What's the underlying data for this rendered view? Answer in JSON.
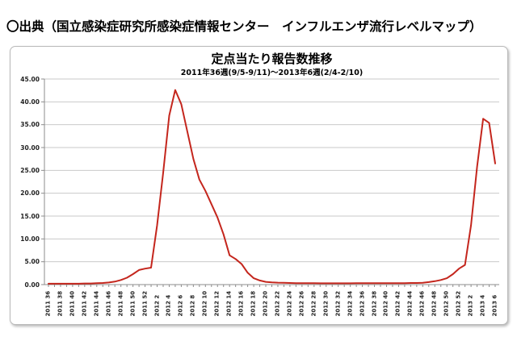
{
  "heading": "〇出典（国立感染症研究所感染症情報センター　インフルエンザ流行レベルマップ）",
  "chart": {
    "title": "定点当たり報告数推移",
    "subtitle": "2011年36週(9/5-9/11)～2013年6週(2/4-2/10)"
  },
  "colors": {
    "line": "#c4261d",
    "grid": "#c9c9c9",
    "axis": "#8c8c8c",
    "border": "#b9b9b9",
    "text": "#000000"
  },
  "chart_data": {
    "type": "line",
    "title": "定点当たり報告数推移",
    "subtitle": "2011年36週(9/5-9/11)～2013年6週(2/4-2/10)",
    "xlabel": "",
    "ylabel": "",
    "ylim": [
      0,
      45
    ],
    "ytick_interval": 5,
    "ytick_labels": [
      "0.00",
      "5.00",
      "10.00",
      "15.00",
      "20.00",
      "25.00",
      "30.00",
      "35.00",
      "40.00",
      "45.00"
    ],
    "grid": true,
    "legend": false,
    "line_color": "#c4261d",
    "points_per_xtick": 2,
    "xtick_labels": [
      "2011 36",
      "2011 38",
      "2011 40",
      "2011 42",
      "2011 44",
      "2011 46",
      "2011 48",
      "2011 50",
      "2011 52",
      "2012 2",
      "2012 4",
      "2012 6",
      "2012 8",
      "2012 10",
      "2012 12",
      "2012 14",
      "2012 16",
      "2012 18",
      "2012 20",
      "2012 22",
      "2012 24",
      "2012 26",
      "2012 28",
      "2012 30",
      "2012 32",
      "2012 34",
      "2012 36",
      "2012 38",
      "2012 40",
      "2012 42",
      "2012 44",
      "2012 46",
      "2012 48",
      "2012 50",
      "2012 52",
      "2013 2",
      "2013 4",
      "2013 6"
    ],
    "values": [
      0.2,
      0.2,
      0.2,
      0.2,
      0.2,
      0.2,
      0.25,
      0.25,
      0.3,
      0.35,
      0.45,
      0.65,
      1.0,
      1.5,
      2.3,
      3.2,
      3.5,
      3.7,
      13.0,
      24.5,
      37.0,
      42.6,
      39.5,
      33.5,
      27.5,
      23.0,
      20.5,
      17.6,
      14.7,
      11.0,
      6.4,
      5.6,
      4.5,
      2.6,
      1.4,
      0.9,
      0.6,
      0.5,
      0.42,
      0.38,
      0.35,
      0.3,
      0.3,
      0.3,
      0.3,
      0.28,
      0.28,
      0.28,
      0.28,
      0.28,
      0.28,
      0.3,
      0.3,
      0.3,
      0.3,
      0.3,
      0.3,
      0.3,
      0.32,
      0.32,
      0.35,
      0.35,
      0.4,
      0.55,
      0.75,
      1.0,
      1.4,
      2.3,
      3.5,
      4.3,
      13.0,
      25.8,
      36.3,
      35.4,
      26.5
    ]
  }
}
